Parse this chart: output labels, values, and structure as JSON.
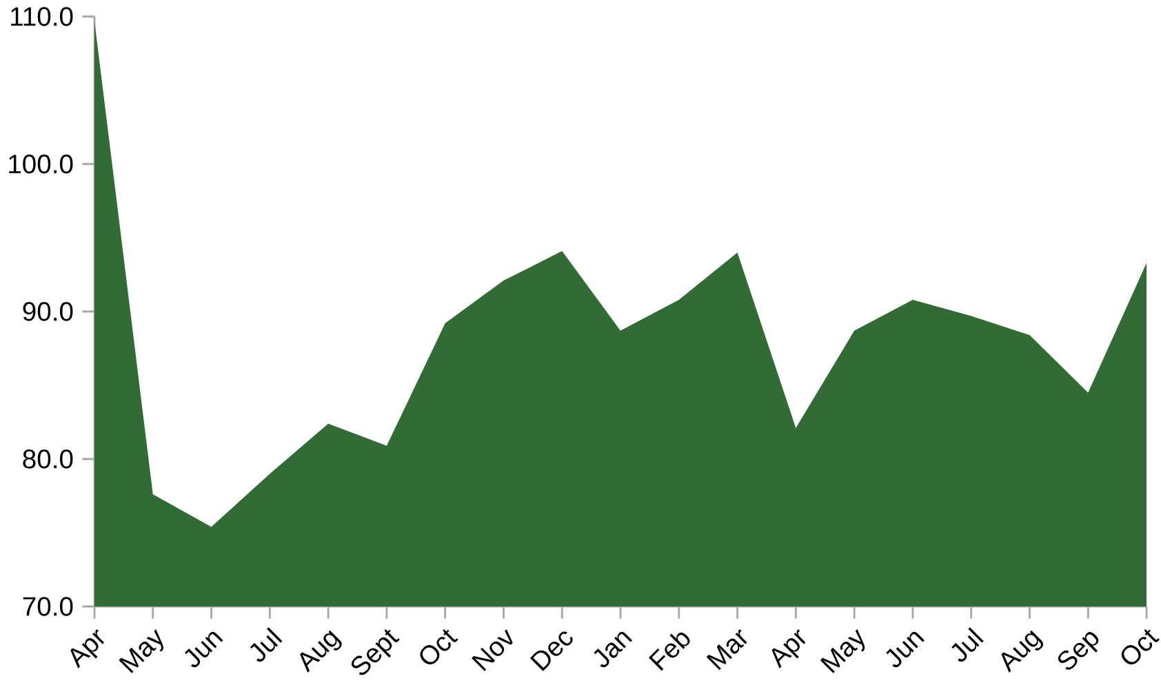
{
  "chart_data": {
    "type": "area",
    "categories": [
      "Apr",
      "May",
      "Jun",
      "Jul",
      "Aug",
      "Sept",
      "Oct",
      "Nov",
      "Dec",
      "Jan",
      "Feb",
      "Mar",
      "Apr",
      "May",
      "Jun",
      "Jul",
      "Aug",
      "Sep",
      "Oct"
    ],
    "values": [
      109.7,
      77.6,
      75.4,
      79.0,
      82.4,
      80.9,
      89.2,
      92.1,
      94.1,
      88.7,
      90.8,
      94.0,
      82.1,
      88.7,
      90.8,
      89.7,
      88.4,
      84.5,
      93.3
    ],
    "color": "#336b36",
    "ylim": [
      70,
      110
    ],
    "yticks": [
      {
        "value": 70,
        "label": "70.0"
      },
      {
        "value": 80,
        "label": "80.0"
      },
      {
        "value": 90,
        "label": "90.0"
      },
      {
        "value": 100,
        "label": "100.0"
      },
      {
        "value": 110,
        "label": "110.0"
      }
    ]
  }
}
